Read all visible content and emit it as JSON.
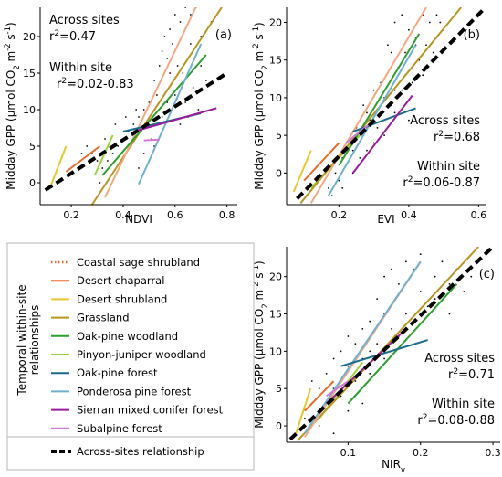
{
  "chart_data": [
    {
      "panel": "(a)",
      "type": "scatter",
      "xlabel": "NDVI",
      "ylabel": "Midday GPP (µmol CO₂ m⁻² s⁻¹)",
      "xlim": [
        0.08,
        0.84
      ],
      "ylim": [
        -3,
        24
      ],
      "xticks": [
        0.2,
        0.4,
        0.6,
        0.8
      ],
      "yticks": [
        0,
        5,
        10,
        15,
        20
      ],
      "xtick_labels": [
        "0.2",
        "0.4",
        "0.6",
        "0.8"
      ],
      "ytick_labels": [
        "0",
        "5",
        "10",
        "15",
        "20"
      ],
      "grid": false,
      "annotations": {
        "across_label": "Across sites",
        "across_r2": "r²=0.47",
        "within_label": "Within site",
        "within_r2": "r²=0.02-0.83"
      },
      "scatter": [
        [
          0.56,
          20
        ],
        [
          0.58,
          21
        ],
        [
          0.6,
          23
        ],
        [
          0.62,
          22
        ],
        [
          0.64,
          24
        ],
        [
          0.66,
          23
        ],
        [
          0.68,
          24
        ],
        [
          0.55,
          18
        ],
        [
          0.57,
          17
        ],
        [
          0.59,
          19
        ],
        [
          0.61,
          16
        ],
        [
          0.63,
          15
        ],
        [
          0.65,
          17
        ],
        [
          0.67,
          13
        ],
        [
          0.7,
          20
        ],
        [
          0.52,
          14
        ],
        [
          0.5,
          11
        ],
        [
          0.48,
          10
        ],
        [
          0.46,
          9
        ],
        [
          0.44,
          8
        ],
        [
          0.42,
          7
        ],
        [
          0.4,
          6
        ],
        [
          0.38,
          5
        ],
        [
          0.36,
          4
        ],
        [
          0.34,
          3
        ],
        [
          0.3,
          3
        ],
        [
          0.32,
          2
        ],
        [
          0.28,
          4
        ],
        [
          0.26,
          5
        ],
        [
          0.24,
          4
        ],
        [
          0.33,
          6
        ],
        [
          0.37,
          8
        ],
        [
          0.41,
          9
        ],
        [
          0.45,
          10
        ],
        [
          0.49,
          8
        ],
        [
          0.53,
          12
        ],
        [
          0.57,
          11
        ],
        [
          0.61,
          13
        ],
        [
          0.65,
          9
        ],
        [
          0.69,
          10
        ],
        [
          0.72,
          14
        ],
        [
          0.54,
          16
        ],
        [
          0.47,
          7
        ],
        [
          0.43,
          5
        ],
        [
          0.39,
          3
        ],
        [
          0.35,
          1
        ],
        [
          0.31,
          0
        ],
        [
          0.51,
          6
        ],
        [
          0.55,
          9
        ],
        [
          0.6,
          12
        ],
        [
          0.62,
          8
        ],
        [
          0.64,
          11
        ],
        [
          0.5,
          3
        ],
        [
          0.46,
          2
        ],
        [
          0.58,
          15
        ],
        [
          0.66,
          19
        ],
        [
          0.7,
          16
        ],
        [
          0.74,
          22
        ],
        [
          0.52,
          5
        ],
        [
          0.48,
          4
        ]
      ],
      "site_lines": [
        {
          "color": "#e8c730",
          "x": [
            0.12,
            0.18
          ],
          "y": [
            -0.5,
            5
          ]
        },
        {
          "color": "#e86a2a",
          "x": [
            0.18,
            0.31
          ],
          "y": [
            1.5,
            5
          ]
        },
        {
          "color": "#9bd43a",
          "x": [
            0.29,
            0.36
          ],
          "y": [
            1,
            6.5
          ]
        },
        {
          "color": "#b8951f",
          "x": [
            0.28,
            0.78
          ],
          "y": [
            -3,
            24
          ]
        },
        {
          "color": "#f4a780",
          "x": [
            0.33,
            0.68
          ],
          "y": [
            -2,
            24
          ]
        },
        {
          "color": "#2e9e2e",
          "x": [
            0.32,
            0.72
          ],
          "y": [
            1,
            17.5
          ]
        },
        {
          "color": "#6fb0d2",
          "x": [
            0.46,
            0.7
          ],
          "y": [
            -0.2,
            19
          ]
        },
        {
          "color": "#1a6b8a",
          "x": [
            0.4,
            0.7
          ],
          "y": [
            7,
            9.5
          ]
        },
        {
          "color": "#9b1c9b",
          "x": [
            0.44,
            0.76
          ],
          "y": [
            7,
            10.2
          ]
        },
        {
          "color": "#d27ad2",
          "x": [
            0.48,
            0.54
          ],
          "y": [
            5.8,
            5.9
          ]
        }
      ],
      "across": {
        "x": [
          0.1,
          0.8
        ],
        "y": [
          -1,
          15
        ]
      }
    },
    {
      "panel": "(b)",
      "type": "scatter",
      "xlabel": "EVI",
      "ylabel": "Midday GPP (µmol CO₂ m⁻² s⁻¹)",
      "xlim": [
        0.05,
        0.62
      ],
      "ylim": [
        -4.2,
        22
      ],
      "xticks": [
        0.2,
        0.4,
        0.6
      ],
      "yticks": [
        0,
        5,
        10,
        15,
        20
      ],
      "xtick_labels": [
        "0.2",
        "0.4",
        "0.6"
      ],
      "ytick_labels": [
        "0",
        "5",
        "10",
        "15",
        "20"
      ],
      "grid": false,
      "annotations": {
        "across_label": "Across sites",
        "across_r2": "r²=0.68",
        "within_label": "Within site",
        "within_r2": "r²=0.06-0.87"
      },
      "scatter": [
        [
          0.36,
          20
        ],
        [
          0.38,
          21
        ],
        [
          0.4,
          19
        ],
        [
          0.42,
          18
        ],
        [
          0.44,
          21
        ],
        [
          0.46,
          20
        ],
        [
          0.48,
          21
        ],
        [
          0.5,
          19
        ],
        [
          0.34,
          17
        ],
        [
          0.35,
          16
        ],
        [
          0.37,
          14
        ],
        [
          0.39,
          13
        ],
        [
          0.3,
          11
        ],
        [
          0.32,
          12
        ],
        [
          0.33,
          10
        ],
        [
          0.27,
          9
        ],
        [
          0.28,
          8
        ],
        [
          0.29,
          7
        ],
        [
          0.25,
          6
        ],
        [
          0.26,
          5
        ],
        [
          0.23,
          4
        ],
        [
          0.24,
          3
        ],
        [
          0.21,
          2
        ],
        [
          0.22,
          1
        ],
        [
          0.19,
          0
        ],
        [
          0.2,
          -1
        ],
        [
          0.17,
          -2
        ],
        [
          0.18,
          -3
        ],
        [
          0.41,
          12
        ],
        [
          0.43,
          15
        ],
        [
          0.45,
          17
        ],
        [
          0.47,
          16
        ],
        [
          0.31,
          6
        ],
        [
          0.36,
          8
        ],
        [
          0.4,
          7
        ],
        [
          0.28,
          3
        ],
        [
          0.33,
          5
        ],
        [
          0.38,
          11
        ],
        [
          0.26,
          2
        ],
        [
          0.35,
          9
        ],
        [
          0.44,
          13
        ],
        [
          0.49,
          20
        ],
        [
          0.3,
          4
        ],
        [
          0.39,
          16
        ],
        [
          0.42,
          17
        ],
        [
          0.24,
          0
        ],
        [
          0.21,
          -2
        ],
        [
          0.32,
          8
        ],
        [
          0.28,
          6
        ],
        [
          0.36,
          11
        ]
      ],
      "site_lines": [
        {
          "color": "#e8c730",
          "x": [
            0.07,
            0.12
          ],
          "y": [
            -2.5,
            3
          ]
        },
        {
          "color": "#e86a2a",
          "x": [
            0.1,
            0.2
          ],
          "y": [
            -1,
            4
          ]
        },
        {
          "color": "#9bd43a",
          "x": [
            0.12,
            0.26
          ],
          "y": [
            -2,
            5
          ]
        },
        {
          "color": "#b8951f",
          "x": [
            0.09,
            0.55
          ],
          "y": [
            -4,
            22
          ]
        },
        {
          "color": "#f4a780",
          "x": [
            0.12,
            0.45
          ],
          "y": [
            -4,
            22
          ]
        },
        {
          "color": "#2e9e2e",
          "x": [
            0.2,
            0.43
          ],
          "y": [
            1,
            18.5
          ]
        },
        {
          "color": "#6fb0d2",
          "x": [
            0.17,
            0.42
          ],
          "y": [
            -3,
            17
          ]
        },
        {
          "color": "#1a6b8a",
          "x": [
            0.24,
            0.42
          ],
          "y": [
            5.5,
            8.6
          ]
        },
        {
          "color": "#9b1c9b",
          "x": [
            0.24,
            0.41
          ],
          "y": [
            0,
            10.3
          ]
        },
        {
          "color": "#d27ad2",
          "x": [
            0.22,
            0.3
          ],
          "y": [
            4,
            7
          ]
        }
      ],
      "across": {
        "x": [
          0.08,
          0.62
        ],
        "y": [
          -3.4,
          22
        ]
      }
    },
    {
      "panel": "(c)",
      "type": "scatter",
      "xlabel": "NIRᵥ",
      "ylabel": "Midday GPP (µmol CO₂ m⁻² s⁻¹)",
      "xlim": [
        0.015,
        0.31
      ],
      "ylim": [
        -2.2,
        24
      ],
      "xticks": [
        0.1,
        0.2,
        0.3
      ],
      "yticks": [
        0,
        5,
        10,
        15,
        20
      ],
      "xtick_labels": [
        "0.1",
        "0.2",
        "0.3"
      ],
      "ytick_labels": [
        "0",
        "5",
        "10",
        "15",
        "20"
      ],
      "grid": false,
      "annotations": {
        "across_label": "Across sites",
        "across_r2": "r²=0.71",
        "within_label": "Within site",
        "within_r2": "r²=0.08-0.88"
      },
      "scatter": [
        [
          0.15,
          20
        ],
        [
          0.16,
          21
        ],
        [
          0.17,
          19
        ],
        [
          0.18,
          22
        ],
        [
          0.19,
          21
        ],
        [
          0.2,
          23
        ],
        [
          0.22,
          20
        ],
        [
          0.24,
          19
        ],
        [
          0.23,
          22
        ],
        [
          0.14,
          17
        ],
        [
          0.15,
          15
        ],
        [
          0.13,
          14
        ],
        [
          0.12,
          13
        ],
        [
          0.11,
          11
        ],
        [
          0.1,
          12
        ],
        [
          0.09,
          10
        ],
        [
          0.08,
          9
        ],
        [
          0.07,
          7
        ],
        [
          0.06,
          5
        ],
        [
          0.05,
          3
        ],
        [
          0.04,
          1
        ],
        [
          0.06,
          2
        ],
        [
          0.08,
          5
        ],
        [
          0.1,
          8
        ],
        [
          0.12,
          9
        ],
        [
          0.14,
          11
        ],
        [
          0.16,
          13
        ],
        [
          0.18,
          15
        ],
        [
          0.2,
          18
        ],
        [
          0.22,
          17
        ],
        [
          0.25,
          21
        ],
        [
          0.27,
          20
        ],
        [
          0.13,
          7
        ],
        [
          0.11,
          6
        ],
        [
          0.09,
          4
        ],
        [
          0.07,
          3
        ],
        [
          0.17,
          12
        ],
        [
          0.19,
          14
        ],
        [
          0.21,
          16
        ],
        [
          0.15,
          9
        ],
        [
          0.1,
          2
        ],
        [
          0.12,
          3
        ],
        [
          0.05,
          6
        ],
        [
          0.08,
          -1
        ],
        [
          0.06,
          0
        ],
        [
          0.13,
          10
        ],
        [
          0.24,
          15
        ],
        [
          0.26,
          18
        ]
      ],
      "site_lines": [
        {
          "color": "#e8c730",
          "x": [
            0.028,
            0.048
          ],
          "y": [
            -1,
            5
          ]
        },
        {
          "color": "#e86a2a",
          "x": [
            0.04,
            0.08
          ],
          "y": [
            2,
            6
          ]
        },
        {
          "color": "#9bd43a",
          "x": [
            0.06,
            0.12
          ],
          "y": [
            1,
            8.5
          ]
        },
        {
          "color": "#b8951f",
          "x": [
            0.03,
            0.28
          ],
          "y": [
            -2,
            24
          ]
        },
        {
          "color": "#f4a780",
          "x": [
            0.04,
            0.2
          ],
          "y": [
            -1.5,
            22
          ]
        },
        {
          "color": "#2e9e2e",
          "x": [
            0.1,
            0.25
          ],
          "y": [
            3,
            19
          ]
        },
        {
          "color": "#6fb0d2",
          "x": [
            0.04,
            0.2
          ],
          "y": [
            -1,
            22
          ]
        },
        {
          "color": "#1a6b8a",
          "x": [
            0.09,
            0.21
          ],
          "y": [
            8,
            11.5
          ]
        },
        {
          "color": "#9b1c9b",
          "x": [
            0.07,
            0.18
          ],
          "y": [
            3,
            13
          ]
        },
        {
          "color": "#d27ad2",
          "x": [
            0.07,
            0.1
          ],
          "y": [
            4,
            6
          ]
        }
      ],
      "across": {
        "x": [
          0.02,
          0.3
        ],
        "y": [
          -1.8,
          24
        ]
      }
    }
  ],
  "legend": {
    "title": "Temporal within-site relationships",
    "items": [
      {
        "label": "Coastal sage shrubland",
        "color": "#e86a2a",
        "style": "dotted"
      },
      {
        "label": "Desert chaparral",
        "color": "#e86a2a",
        "style": "solid"
      },
      {
        "label": "Desert shrubland",
        "color": "#e8c730",
        "style": "solid"
      },
      {
        "label": "Grassland",
        "color": "#b8951f",
        "style": "solid"
      },
      {
        "label": "Oak-pine woodland",
        "color": "#2e9e2e",
        "style": "solid"
      },
      {
        "label": "Pinyon-juniper woodland",
        "color": "#9bd43a",
        "style": "solid"
      },
      {
        "label": "Oak-pine forest",
        "color": "#1a6b8a",
        "style": "solid"
      },
      {
        "label": "Ponderosa pine forest",
        "color": "#6fb0d2",
        "style": "solid"
      },
      {
        "label": "Sierran mixed conifer forest",
        "color": "#9b1c9b",
        "style": "solid"
      },
      {
        "label": "Subalpine forest",
        "color": "#d27ad2",
        "style": "solid"
      }
    ],
    "across_item": {
      "label": "Across-sites relationship",
      "color": "#000000",
      "style": "dashed"
    }
  }
}
